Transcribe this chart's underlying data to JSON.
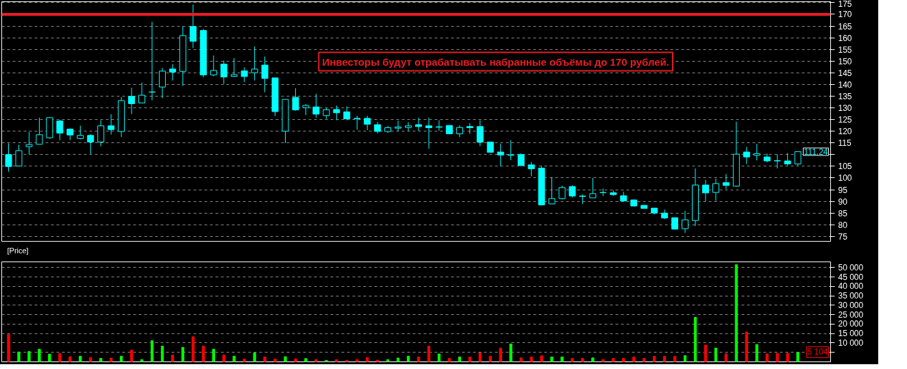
{
  "chart_data": [
    {
      "type": "candlestick",
      "color": "#00ffff",
      "categories": [
        null,
        null,
        null,
        null,
        null,
        null,
        null,
        null,
        null,
        null,
        null,
        null,
        null,
        null,
        null,
        null,
        null,
        null,
        null,
        null,
        null,
        null,
        null,
        null,
        null,
        null,
        null,
        null,
        null,
        null,
        null,
        null,
        null,
        null,
        null,
        null,
        null,
        null,
        null,
        null,
        null,
        null,
        null,
        null,
        null,
        null,
        null,
        null,
        null,
        null,
        null,
        null,
        null,
        null,
        null,
        null,
        null,
        null,
        null,
        null,
        null,
        null,
        null,
        null,
        null,
        null,
        null,
        null,
        null,
        null,
        null,
        null,
        null,
        null,
        null,
        null,
        null,
        null
      ],
      "ohlc": [
        [
          110.0,
          114.8,
          102.7,
          104.9
        ],
        [
          105.1,
          114.2,
          105.0,
          111.7
        ],
        [
          113.4,
          119.7,
          110.1,
          114.3
        ],
        [
          114.4,
          125.8,
          114.4,
          118.5
        ],
        [
          117.2,
          126.1,
          116.8,
          125.8
        ],
        [
          124.4,
          124.8,
          116.2,
          119.2
        ],
        [
          120.9,
          121.2,
          116.2,
          118.4
        ],
        [
          116.9,
          122.4,
          116.5,
          118.2
        ],
        [
          118.2,
          118.7,
          110.3,
          115.4
        ],
        [
          115.4,
          124.7,
          113.5,
          122.3
        ],
        [
          122.3,
          127.3,
          118.6,
          120.7
        ],
        [
          119.9,
          134.6,
          117.5,
          133.1
        ],
        [
          134.9,
          138.6,
          127.3,
          131.8
        ],
        [
          132.1,
          140.8,
          132.1,
          135.4
        ],
        [
          136.7,
          166.8,
          133.2,
          136.8
        ],
        [
          138.9,
          147.1,
          134.2,
          145.7
        ],
        [
          146.6,
          148.7,
          141.7,
          145.3
        ],
        [
          145.6,
          164.8,
          139.4,
          160.9
        ],
        [
          164.8,
          174.2,
          155.6,
          158.5
        ],
        [
          163.1,
          163.8,
          143.0,
          144.1
        ],
        [
          144.1,
          152.4,
          143.5,
          146.0
        ],
        [
          148.7,
          150.2,
          140.2,
          143.2
        ],
        [
          143.5,
          151.3,
          143.5,
          144.2
        ],
        [
          145.8,
          147.3,
          141.0,
          143.4
        ],
        [
          145.0,
          156.3,
          141.7,
          146.6
        ],
        [
          148.3,
          151.9,
          136.7,
          142.6
        ],
        [
          142.8,
          142.9,
          126.5,
          128.4
        ],
        [
          120.0,
          133.6,
          114.9,
          133.6
        ],
        [
          134.5,
          138.4,
          128.8,
          129.1
        ],
        [
          130.1,
          131.6,
          126.9,
          131.0
        ],
        [
          130.4,
          136.0,
          125.8,
          127.3
        ],
        [
          126.7,
          129.9,
          125.3,
          129.2
        ],
        [
          129.3,
          131.0,
          124.7,
          127.9
        ],
        [
          128.3,
          130.7,
          124.7,
          125.3
        ],
        [
          125.5,
          126.6,
          120.6,
          125.4
        ],
        [
          125.5,
          126.6,
          120.5,
          123.0
        ],
        [
          122.8,
          123.9,
          119.1,
          119.9
        ],
        [
          119.9,
          122.3,
          119.3,
          121.5
        ],
        [
          121.3,
          124.5,
          120.0,
          121.8
        ],
        [
          121.6,
          123.9,
          120.1,
          122.3
        ],
        [
          122.8,
          125.8,
          120.2,
          122.0
        ],
        [
          122.3,
          125.8,
          112.5,
          121.5
        ],
        [
          121.7,
          124.7,
          120.2,
          121.9
        ],
        [
          122.5,
          122.5,
          118.9,
          118.9
        ],
        [
          118.9,
          122.5,
          117.5,
          121.6
        ],
        [
          122.0,
          123.4,
          118.9,
          121.5
        ],
        [
          122.0,
          124.7,
          113.6,
          115.3
        ],
        [
          115.4,
          115.4,
          110.7,
          111.0
        ],
        [
          111.1,
          114.7,
          105.0,
          109.8
        ],
        [
          109.7,
          116.1,
          107.6,
          109.9
        ],
        [
          110.0,
          110.6,
          104.8,
          105.4
        ],
        [
          105.6,
          106.8,
          100.7,
          103.9
        ],
        [
          104.2,
          105.1,
          88.3,
          88.5
        ],
        [
          88.9,
          100.4,
          88.9,
          91.2
        ],
        [
          91.2,
          96.7,
          90.8,
          95.9
        ],
        [
          96.3,
          96.9,
          91.7,
          92.3
        ],
        [
          92.3,
          92.9,
          88.9,
          92.1
        ],
        [
          91.5,
          100.0,
          91.5,
          93.3
        ],
        [
          93.8,
          95.5,
          92.3,
          93.7
        ],
        [
          93.7,
          94.7,
          92.3,
          92.9
        ],
        [
          92.4,
          94.1,
          90.0,
          90.2
        ],
        [
          90.6,
          90.8,
          87.8,
          88.0
        ],
        [
          88.3,
          88.3,
          87.0,
          87.0
        ],
        [
          87.1,
          87.1,
          84.4,
          85.0
        ],
        [
          85.0,
          86.5,
          82.4,
          82.9
        ],
        [
          83.0,
          83.0,
          78.0,
          78.1
        ],
        [
          78.3,
          86.0,
          76.5,
          82.1
        ],
        [
          81.8,
          104.1,
          79.4,
          97.0
        ],
        [
          97.0,
          99.2,
          90.0,
          93.6
        ],
        [
          93.8,
          99.7,
          90.2,
          97.6
        ],
        [
          98.0,
          101.7,
          95.2,
          96.8
        ],
        [
          96.5,
          124.1,
          96.3,
          110.2
        ],
        [
          111.1,
          113.3,
          106.0,
          109.0
        ],
        [
          109.7,
          114.6,
          107.5,
          110.4
        ],
        [
          109.0,
          110.4,
          106.7,
          107.3
        ],
        [
          107.4,
          110.1,
          104.1,
          107.3
        ],
        [
          107.3,
          110.7,
          105.4,
          106.0
        ],
        [
          106.0,
          111.3,
          105.4,
          111.24
        ]
      ],
      "ylim": [
        72.9,
        175.4
      ],
      "yticks": [
        75,
        80,
        85,
        90,
        95,
        100,
        105,
        {
          "value": 110,
          "label": null
        },
        115,
        120,
        125,
        130,
        135,
        140,
        145,
        150,
        155,
        160,
        165,
        170,
        175
      ],
      "grid": "y",
      "tick_labels": "y",
      "ref_lines": [
        {
          "axis": "y",
          "value": 170,
          "color": "#ed1c24"
        }
      ],
      "annotations": [
        "Инвесторы будут отрабатывать набранные объёмы до 170 рублей.",
        "[Price]",
        "111,24"
      ]
    },
    {
      "type": "bar",
      "categories": [
        null,
        null,
        null,
        null,
        null,
        null,
        null,
        null,
        null,
        null,
        null,
        null,
        null,
        null,
        null,
        null,
        null,
        null,
        null,
        null,
        null,
        null,
        null,
        null,
        null,
        null,
        null,
        null,
        null,
        null,
        null,
        null,
        null,
        null,
        null,
        null,
        null,
        null,
        null,
        null,
        null,
        null,
        null,
        null,
        null,
        null,
        null,
        null,
        null,
        null,
        null,
        null,
        null,
        null,
        null,
        null,
        null,
        null,
        null,
        null,
        null,
        null,
        null,
        null,
        null,
        null,
        null,
        null,
        null,
        null,
        null,
        null,
        null,
        null,
        null,
        null,
        null,
        null
      ],
      "values": [
        14400,
        5200,
        5500,
        6700,
        4100,
        4400,
        2700,
        3000,
        2300,
        1800,
        2000,
        3000,
        6200,
        1200,
        11200,
        8300,
        3600,
        7600,
        13300,
        8300,
        6700,
        3600,
        3000,
        1500,
        4700,
        2600,
        1500,
        2700,
        1500,
        1700,
        1200,
        800,
        1200,
        800,
        1200,
        2300,
        900,
        1200,
        2000,
        3000,
        2600,
        8300,
        4200,
        1800,
        2600,
        2600,
        4700,
        3000,
        7300,
        9500,
        2100,
        2600,
        3200,
        2600,
        2600,
        1800,
        1800,
        2100,
        1200,
        1800,
        1800,
        2600,
        1800,
        2900,
        2900,
        2900,
        3300,
        23600,
        8900,
        7300,
        4200,
        51500,
        15800,
        9200,
        4200,
        4500,
        4500,
        5104
      ],
      "colors": [
        "#ff0000",
        "#00ff00",
        "#00ff00",
        "#00ff00",
        "#00ff00",
        "#ff0000",
        "#ff0000",
        "#00ff00",
        "#ff0000",
        "#00ff00",
        "#ff0000",
        "#00ff00",
        "#ff0000",
        "#00ff00",
        "#00ff00",
        "#00ff00",
        "#ff0000",
        "#00ff00",
        "#ff0000",
        "#ff0000",
        "#00ff00",
        "#ff0000",
        "#00ff00",
        "#ff0000",
        "#00ff00",
        "#ff0000",
        "#ff0000",
        "#00ff00",
        "#ff0000",
        "#00ff00",
        "#ff0000",
        "#00ff00",
        "#ff0000",
        "#ff0000",
        "#ff0000",
        "#ff0000",
        "#ff0000",
        "#00ff00",
        "#00ff00",
        "#00ff00",
        "#ff0000",
        "#ff0000",
        "#00ff00",
        "#ff0000",
        "#00ff00",
        "#ff0000",
        "#ff0000",
        "#ff0000",
        "#ff0000",
        "#00ff00",
        "#ff0000",
        "#ff0000",
        "#ff0000",
        "#00ff00",
        "#00ff00",
        "#ff0000",
        "#ff0000",
        "#00ff00",
        "#ff0000",
        "#ff0000",
        "#ff0000",
        "#ff0000",
        "#ff0000",
        "#ff0000",
        "#ff0000",
        "#ff0000",
        "#00ff00",
        "#00ff00",
        "#ff0000",
        "#00ff00",
        "#ff0000",
        "#00ff00",
        "#ff0000",
        "#00ff00",
        "#ff0000",
        "#ff0000",
        "#ff0000",
        "#00ff00"
      ],
      "ylim": [
        0,
        53000
      ],
      "yticks": [
        {
          "value": 5000,
          "label": null
        },
        {
          "value": 10000,
          "label": "10 000"
        },
        {
          "value": 15000,
          "label": "15 000"
        },
        {
          "value": 20000,
          "label": "20 000"
        },
        {
          "value": 25000,
          "label": "25 000"
        },
        {
          "value": 30000,
          "label": "30 000"
        },
        {
          "value": 35000,
          "label": "35 000"
        },
        {
          "value": 40000,
          "label": "40 000"
        },
        {
          "value": 45000,
          "label": "45 000"
        },
        {
          "value": 50000,
          "label": "50 000"
        }
      ],
      "grid": "y",
      "tick_labels": "y",
      "annotations": [
        "5 104"
      ]
    }
  ]
}
